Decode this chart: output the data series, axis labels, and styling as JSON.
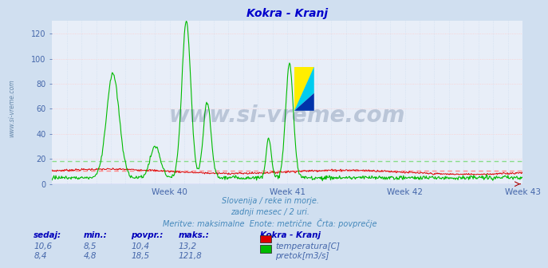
{
  "title": "Kokra - Kranj",
  "title_color": "#0000cc",
  "bg_color": "#d0dff0",
  "plot_bg_color": "#e8eef8",
  "grid_h_color": "#ffcccc",
  "grid_v_color": "#ccddee",
  "ylabel_color": "#4466aa",
  "xlabel_color": "#4466aa",
  "ylim": [
    0,
    130
  ],
  "yticks": [
    0,
    20,
    40,
    60,
    80,
    100,
    120
  ],
  "weeks": [
    "Week 40",
    "Week 41",
    "Week 42",
    "Week 43"
  ],
  "n_points": 744,
  "avg_temp": 10.4,
  "avg_flow": 18.5,
  "temp_color": "#dd0000",
  "flow_color": "#00bb00",
  "avg_line_color_temp": "#ff8888",
  "avg_line_color_flow": "#88dd88",
  "watermark": "www.si-vreme.com",
  "watermark_color": "#1a3a6a",
  "watermark_alpha": 0.22,
  "subtitle1": "Slovenija / reke in morje.",
  "subtitle2": "zadnji mesec / 2 uri.",
  "subtitle3": "Meritve: maksimalne  Enote: metrične  Črta: povprečje",
  "subtitle_color": "#4488bb",
  "footer_header_color": "#0000bb",
  "footer_label_color": "#4466aa",
  "legend_title": "Kokra - Kranj",
  "legend_items": [
    "temperatura[C]",
    "pretok[m3/s]"
  ],
  "legend_colors": [
    "#dd0000",
    "#00bb00"
  ],
  "stats_sedaj": [
    "10,6",
    "8,4"
  ],
  "stats_min": [
    "8,5",
    "4,8"
  ],
  "stats_povpr": [
    "10,4",
    "18,5"
  ],
  "stats_maks": [
    "13,2",
    "121,8"
  ],
  "side_label": "www.si-vreme.com",
  "side_label_color": "#6688aa",
  "baseline_color": "#0000ff",
  "arrow_color": "#aa0000"
}
